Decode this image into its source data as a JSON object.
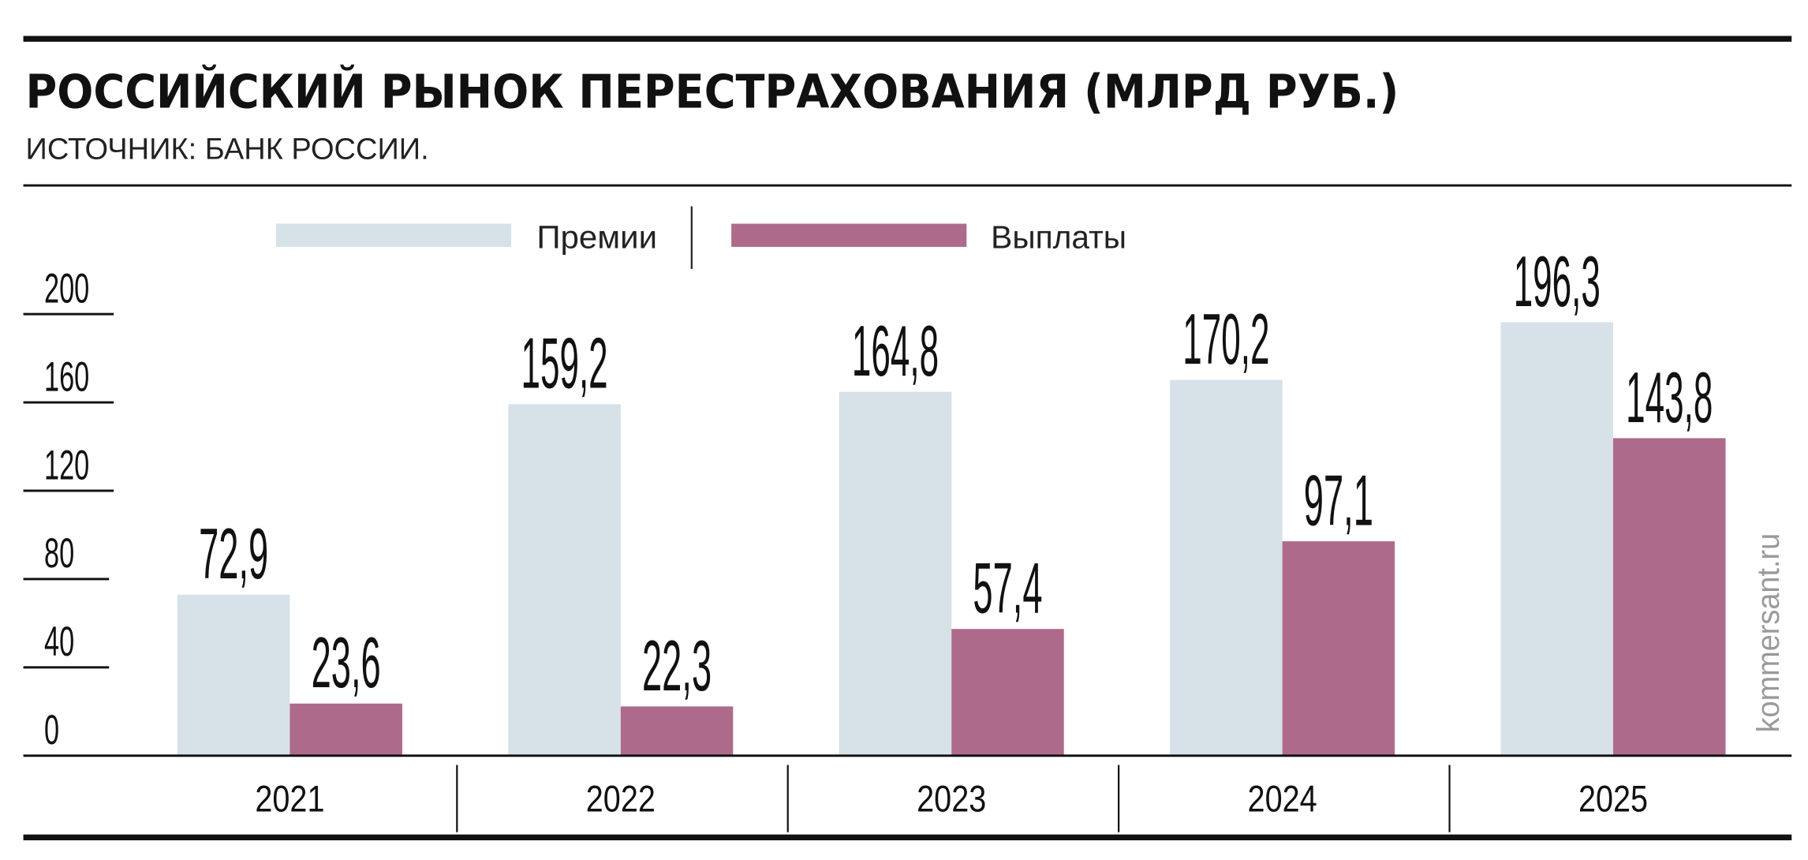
{
  "header": {
    "title": "РОССИЙСКИЙ РЫНОК ПЕРЕСТРАХОВАНИЯ (МЛРД РУБ.)",
    "source": "ИСТОЧНИК: БАНК РОССИИ."
  },
  "watermark": "kommersant.ru",
  "chart_data": {
    "type": "bar",
    "title": "РОССИЙСКИЙ РЫНОК ПЕРЕСТРАХОВАНИЯ (МЛРД РУБ.)",
    "categories": [
      "2021",
      "2022",
      "2023",
      "2024",
      "2025"
    ],
    "series": [
      {
        "name": "Премии",
        "color": "#d6e1e8",
        "values": [
          72.9,
          159.2,
          164.8,
          170.2,
          196.3
        ],
        "labels": [
          "72,9",
          "159,2",
          "164,8",
          "170,2",
          "196,3"
        ]
      },
      {
        "name": "Выплаты",
        "color": "#ae6a8a",
        "values": [
          23.6,
          22.3,
          57.4,
          97.1,
          143.8
        ],
        "labels": [
          "23,6",
          "22,3",
          "57,4",
          "97,1",
          "143,8"
        ]
      }
    ],
    "yticks": [
      "0",
      "40",
      "80",
      "120",
      "160",
      "200"
    ],
    "ylim": [
      0,
      200
    ],
    "legend": "top",
    "grid": false
  }
}
